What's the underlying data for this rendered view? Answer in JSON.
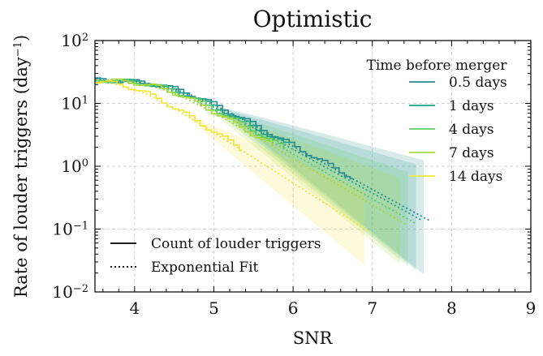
{
  "chart_data": {
    "type": "line",
    "title": "Optimistic",
    "xlabel": "SNR",
    "ylabel": "Rate of louder triggers (day",
    "ylabel_sup": "−1",
    "ylabel_end": ")",
    "xlim": [
      3.5,
      9
    ],
    "ylim_log10": [
      -2,
      2
    ],
    "y_scale": "log",
    "grid": true,
    "x_ticks": [
      {
        "v": 4,
        "label": "4"
      },
      {
        "v": 5,
        "label": "5"
      },
      {
        "v": 6,
        "label": "6"
      },
      {
        "v": 7,
        "label": "7"
      },
      {
        "v": 8,
        "label": "8"
      },
      {
        "v": 9,
        "label": "9"
      }
    ],
    "y_ticks": [
      {
        "e": -2,
        "base": "10",
        "exp": "−2"
      },
      {
        "e": -1,
        "base": "10",
        "exp": "−1"
      },
      {
        "e": 0,
        "base": "10",
        "exp": "0"
      },
      {
        "e": 1,
        "base": "10",
        "exp": "1"
      },
      {
        "e": 2,
        "base": "10",
        "exp": "2"
      }
    ],
    "legend_series": {
      "title": "Time before merger",
      "placement": "top-right",
      "items": [
        "0.5 days",
        "1 days",
        "4 days",
        "7 days",
        "14 days"
      ]
    },
    "legend_style": {
      "placement": "bottom-left",
      "items": [
        {
          "label": "Count of louder triggers",
          "style": "solid"
        },
        {
          "label": "Exponential Fit",
          "style": "dotted"
        }
      ]
    },
    "series": [
      {
        "name": "0.5 days",
        "color": "#2a8a8f",
        "plateau": 24,
        "knee": 4.45,
        "slope": 1.58,
        "cutoff": 0.12,
        "step_end": 6.75,
        "fit_end": 7.15,
        "band_width": 0.35
      },
      {
        "name": "1 days",
        "color": "#21a08a",
        "plateau": 24,
        "knee": 4.4,
        "slope": 1.6,
        "cutoff": 0.12,
        "step_end": 5.95,
        "fit_end": 7.05,
        "band_width": 0.33
      },
      {
        "name": "4 days",
        "color": "#5fc861",
        "plateau": 24,
        "knee": 4.35,
        "slope": 1.65,
        "cutoff": 0.12,
        "step_end": 5.9,
        "fit_end": 6.95,
        "band_width": 0.3
      },
      {
        "name": "7 days",
        "color": "#a6d83a",
        "plateau": 24,
        "knee": 4.3,
        "slope": 1.7,
        "cutoff": 0.12,
        "step_end": 5.75,
        "fit_end": 6.85,
        "band_width": 0.28
      },
      {
        "name": "14 days",
        "color": "#f1e63a",
        "plateau": 24,
        "knee": 3.95,
        "slope": 1.85,
        "cutoff": 0.12,
        "step_end": 5.35,
        "fit_end": 6.4,
        "band_width": 0.25
      }
    ]
  }
}
